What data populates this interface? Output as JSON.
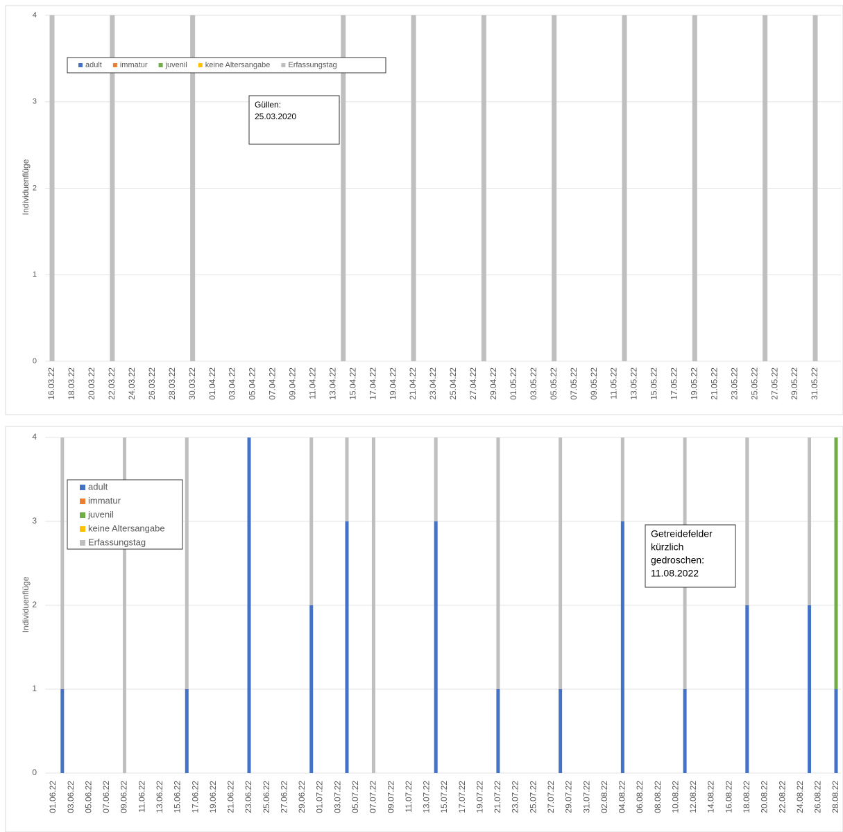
{
  "chart_data": [
    {
      "type": "bar",
      "stacked": true,
      "ylabel": "Individuenflüge",
      "legend": "upper left",
      "annotation": [
        "Güllen:",
        "25.03.2020"
      ],
      "ylim": [
        0,
        4
      ],
      "yticks": [
        0,
        1,
        2,
        3,
        4
      ],
      "grid": true,
      "categories": [
        "16.03.22",
        null,
        "18.03.22",
        null,
        "20.03.22",
        null,
        "22.03.22",
        null,
        "24.03.22",
        null,
        "26.03.22",
        null,
        "28.03.22",
        null,
        "30.03.22",
        null,
        "01.04.22",
        null,
        "03.04.22",
        null,
        "05.04.22",
        null,
        "07.04.22",
        null,
        "09.04.22",
        null,
        "11.04.22",
        null,
        "13.04.22",
        null,
        "15.04.22",
        null,
        "17.04.22",
        null,
        "19.04.22",
        null,
        "21.04.22",
        null,
        "23.04.22",
        null,
        "25.04.22",
        null,
        "27.04.22",
        null,
        "29.04.22",
        null,
        "01.05.22",
        null,
        "03.05.22",
        null,
        "05.05.22",
        null,
        "07.05.22",
        null,
        "09.05.22",
        null,
        "11.05.22",
        null,
        "13.05.22",
        null,
        "15.05.22",
        null,
        "17.05.22",
        null,
        "19.05.22",
        null,
        "21.05.22",
        null,
        "23.05.22",
        null,
        "25.05.22",
        null,
        "27.05.22",
        null,
        "29.05.22",
        null,
        "31.05.22"
      ],
      "series": [
        {
          "name": "adult",
          "color": "#4472c4",
          "values": [
            null,
            null,
            null,
            null,
            null,
            null,
            null,
            null,
            null,
            null,
            null,
            null,
            null,
            null,
            null,
            null,
            null,
            null,
            null,
            null,
            null,
            null,
            null,
            null,
            null,
            null,
            null,
            null,
            null,
            null,
            null,
            null,
            null,
            null,
            null,
            null,
            null,
            null,
            null,
            null,
            null,
            null,
            null,
            null,
            null,
            null,
            null,
            null,
            null,
            null,
            null,
            null,
            null,
            null,
            null,
            null,
            null,
            null,
            null,
            null,
            null,
            null,
            null,
            null,
            null,
            null,
            null,
            null,
            null,
            null,
            null,
            null,
            null,
            null,
            null,
            null,
            null
          ]
        },
        {
          "name": "immatur",
          "color": "#ed7d31",
          "values": [
            null,
            null,
            null,
            null,
            null,
            null,
            null,
            null,
            null,
            null,
            null,
            null,
            null,
            null,
            null,
            null,
            null,
            null,
            null,
            null,
            null,
            null,
            null,
            null,
            null,
            null,
            null,
            null,
            null,
            null,
            null,
            null,
            null,
            null,
            null,
            null,
            null,
            null,
            null,
            null,
            null,
            null,
            null,
            null,
            null,
            null,
            null,
            null,
            null,
            null,
            null,
            null,
            null,
            null,
            null,
            null,
            null,
            null,
            null,
            null,
            null,
            null,
            null,
            null,
            null,
            null,
            null,
            null,
            null,
            null,
            null,
            null,
            null,
            null,
            null,
            null,
            null
          ]
        },
        {
          "name": "juvenil",
          "color": "#70ad47",
          "values": [
            null,
            null,
            null,
            null,
            null,
            null,
            null,
            null,
            null,
            null,
            null,
            null,
            null,
            null,
            null,
            null,
            null,
            null,
            null,
            null,
            null,
            null,
            null,
            null,
            null,
            null,
            null,
            null,
            null,
            null,
            null,
            null,
            null,
            null,
            null,
            null,
            null,
            null,
            null,
            null,
            null,
            null,
            null,
            null,
            null,
            null,
            null,
            null,
            null,
            null,
            null,
            null,
            null,
            null,
            null,
            null,
            null,
            null,
            null,
            null,
            null,
            null,
            null,
            null,
            null,
            null,
            null,
            null,
            null,
            null,
            null,
            null,
            null,
            null,
            null,
            null,
            null
          ]
        },
        {
          "name": "keine Altersangabe",
          "color": "#ffc000",
          "values": [
            null,
            null,
            null,
            null,
            null,
            null,
            null,
            null,
            null,
            null,
            null,
            null,
            null,
            null,
            null,
            null,
            null,
            null,
            null,
            null,
            null,
            null,
            null,
            null,
            null,
            null,
            null,
            null,
            null,
            null,
            null,
            null,
            null,
            null,
            null,
            null,
            null,
            null,
            null,
            null,
            null,
            null,
            null,
            null,
            null,
            null,
            null,
            null,
            null,
            null,
            null,
            null,
            null,
            null,
            null,
            null,
            null,
            null,
            null,
            null,
            null,
            null,
            null,
            null,
            null,
            null,
            null,
            null,
            null,
            null,
            null,
            null,
            null,
            null,
            null,
            null,
            null
          ]
        },
        {
          "name": "Erfassungstag",
          "color": "#bfbfbf",
          "values": [
            4,
            null,
            null,
            null,
            null,
            null,
            4,
            null,
            null,
            null,
            null,
            null,
            null,
            null,
            4,
            null,
            null,
            null,
            null,
            null,
            null,
            null,
            null,
            null,
            null,
            null,
            null,
            null,
            null,
            4,
            null,
            null,
            null,
            null,
            null,
            null,
            4,
            null,
            null,
            null,
            null,
            null,
            null,
            4,
            null,
            null,
            null,
            null,
            null,
            null,
            4,
            null,
            null,
            null,
            null,
            null,
            null,
            4,
            null,
            null,
            null,
            null,
            null,
            null,
            4,
            null,
            null,
            null,
            null,
            null,
            null,
            4,
            null,
            null,
            null,
            null,
            4
          ]
        }
      ]
    },
    {
      "type": "bar",
      "stacked": true,
      "ylabel": "Individuenflüge",
      "legend": "upper left",
      "annotation": [
        "Getreidefelder",
        "kürzlich",
        "gedroschen:",
        "11.08.2022"
      ],
      "ylim": [
        0,
        4
      ],
      "yticks": [
        0,
        1,
        2,
        3,
        4
      ],
      "grid": true,
      "categories": [
        "01.06.22",
        null,
        "03.06.22",
        null,
        "05.06.22",
        null,
        "07.06.22",
        null,
        "09.06.22",
        null,
        "11.06.22",
        null,
        "13.06.22",
        null,
        "15.06.22",
        null,
        "17.06.22",
        null,
        "19.06.22",
        null,
        "21.06.22",
        null,
        "23.06.22",
        null,
        "25.06.22",
        null,
        "27.06.22",
        null,
        "29.06.22",
        null,
        "01.07.22",
        null,
        "03.07.22",
        null,
        "05.07.22",
        null,
        "07.07.22",
        null,
        "09.07.22",
        null,
        "11.07.22",
        null,
        "13.07.22",
        null,
        "15.07.22",
        null,
        "17.07.22",
        null,
        "19.07.22",
        null,
        "21.07.22",
        null,
        "23.07.22",
        null,
        "25.07.22",
        null,
        "27.07.22",
        null,
        "29.07.22",
        null,
        "31.07.22",
        null,
        "02.08.22",
        null,
        "04.08.22",
        null,
        "06.08.22",
        null,
        "08.08.22",
        null,
        "10.08.22",
        null,
        "12.08.22",
        null,
        "14.08.22",
        null,
        "16.08.22",
        null,
        "18.08.22",
        null,
        "20.08.22",
        null,
        "22.08.22",
        null,
        "24.08.22",
        null,
        "26.08.22",
        null,
        "28.08.22"
      ],
      "series": [
        {
          "name": "adult",
          "color": "#4472c4",
          "values": [
            null,
            1,
            null,
            null,
            null,
            null,
            null,
            null,
            null,
            null,
            null,
            null,
            null,
            null,
            null,
            1,
            null,
            null,
            null,
            null,
            null,
            null,
            4,
            null,
            null,
            null,
            null,
            null,
            null,
            2,
            null,
            null,
            null,
            3,
            null,
            null,
            null,
            null,
            null,
            null,
            null,
            null,
            null,
            3,
            null,
            null,
            null,
            null,
            null,
            null,
            1,
            null,
            null,
            null,
            null,
            null,
            null,
            1,
            null,
            null,
            null,
            null,
            null,
            null,
            3,
            null,
            null,
            null,
            null,
            null,
            null,
            1,
            null,
            null,
            null,
            null,
            null,
            null,
            2,
            null,
            null,
            null,
            null,
            null,
            null,
            2,
            null,
            null,
            1
          ]
        },
        {
          "name": "immatur",
          "color": "#ed7d31",
          "values": [
            null,
            null,
            null,
            null,
            null,
            null,
            null,
            null,
            null,
            null,
            null,
            null,
            null,
            null,
            null,
            null,
            null,
            null,
            null,
            null,
            null,
            null,
            null,
            null,
            null,
            null,
            null,
            null,
            null,
            null,
            null,
            null,
            null,
            null,
            null,
            null,
            null,
            null,
            null,
            null,
            null,
            null,
            null,
            null,
            null,
            null,
            null,
            null,
            null,
            null,
            null,
            null,
            null,
            null,
            null,
            null,
            null,
            null,
            null,
            null,
            null,
            null,
            null,
            null,
            null,
            null,
            null,
            null,
            null,
            null,
            null,
            null,
            null,
            null,
            null,
            null,
            null,
            null,
            null,
            null,
            null,
            null,
            null,
            null,
            null,
            null,
            null,
            null,
            null
          ]
        },
        {
          "name": "juvenil",
          "color": "#70ad47",
          "values": [
            null,
            null,
            null,
            null,
            null,
            null,
            null,
            null,
            null,
            null,
            null,
            null,
            null,
            null,
            null,
            null,
            null,
            null,
            null,
            null,
            null,
            null,
            null,
            null,
            null,
            null,
            null,
            null,
            null,
            null,
            null,
            null,
            null,
            null,
            null,
            null,
            null,
            null,
            null,
            null,
            null,
            null,
            null,
            null,
            null,
            null,
            null,
            null,
            null,
            null,
            null,
            null,
            null,
            null,
            null,
            null,
            null,
            null,
            null,
            null,
            null,
            null,
            null,
            null,
            null,
            null,
            null,
            null,
            null,
            null,
            null,
            null,
            null,
            null,
            null,
            null,
            null,
            null,
            null,
            null,
            null,
            null,
            null,
            null,
            null,
            null,
            null,
            null,
            3
          ]
        },
        {
          "name": "keine Altersangabe",
          "color": "#ffc000",
          "values": [
            null,
            null,
            null,
            null,
            null,
            null,
            null,
            null,
            null,
            null,
            null,
            null,
            null,
            null,
            null,
            null,
            null,
            null,
            null,
            null,
            null,
            null,
            null,
            null,
            null,
            null,
            null,
            null,
            null,
            null,
            null,
            null,
            null,
            null,
            null,
            null,
            null,
            null,
            null,
            null,
            null,
            null,
            null,
            null,
            null,
            null,
            null,
            null,
            null,
            null,
            null,
            null,
            null,
            null,
            null,
            null,
            null,
            null,
            null,
            null,
            null,
            null,
            null,
            null,
            null,
            null,
            null,
            null,
            null,
            null,
            null,
            null,
            null,
            null,
            null,
            null,
            null,
            null,
            null,
            null,
            null,
            null,
            null,
            null,
            null,
            null,
            null,
            null,
            null
          ]
        },
        {
          "name": "Erfassungstag",
          "color": "#bfbfbf",
          "values": [
            null,
            3,
            null,
            null,
            null,
            null,
            null,
            null,
            4,
            null,
            null,
            null,
            null,
            null,
            null,
            3,
            null,
            null,
            null,
            null,
            null,
            null,
            null,
            null,
            null,
            null,
            null,
            null,
            null,
            2,
            null,
            null,
            null,
            1,
            null,
            null,
            4,
            null,
            null,
            null,
            null,
            null,
            null,
            1,
            null,
            null,
            null,
            null,
            null,
            null,
            3,
            null,
            null,
            null,
            null,
            null,
            null,
            3,
            null,
            null,
            null,
            null,
            null,
            null,
            1,
            null,
            null,
            null,
            null,
            null,
            null,
            3,
            null,
            null,
            null,
            null,
            null,
            null,
            2,
            null,
            null,
            null,
            null,
            null,
            null,
            2,
            null,
            null,
            null
          ]
        }
      ]
    }
  ]
}
